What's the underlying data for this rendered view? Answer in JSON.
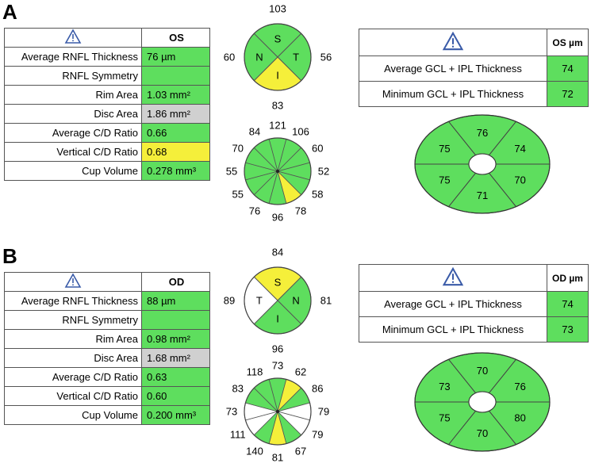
{
  "panels": [
    {
      "letter": "A",
      "table": {
        "eye": "OS",
        "rows": [
          {
            "label": "Average RNFL Thickness",
            "value": "76 µm",
            "color": "green"
          },
          {
            "label": "RNFL Symmetry",
            "value": "",
            "color": "green"
          },
          {
            "label": "Rim Area",
            "value": "1.03 mm²",
            "color": "green"
          },
          {
            "label": "Disc Area",
            "value": "1.86 mm²",
            "color": "gray"
          },
          {
            "label": "Average C/D Ratio",
            "value": "0.66",
            "color": "green"
          },
          {
            "label": "Vertical C/D Ratio",
            "value": "0.68",
            "color": "yellow"
          },
          {
            "label": "Cup Volume",
            "value": "0.278 mm³",
            "color": "green"
          }
        ]
      },
      "quadrant": {
        "sectors": [
          {
            "letter": "S",
            "value": "103",
            "color": "green"
          },
          {
            "letter": "T",
            "value": "56",
            "color": "green"
          },
          {
            "letter": "I",
            "value": "83",
            "color": "yellow"
          },
          {
            "letter": "N",
            "value": "60",
            "color": "green"
          }
        ]
      },
      "clock": {
        "hours": [
          {
            "value": "121",
            "color": "green"
          },
          {
            "value": "106",
            "color": "green"
          },
          {
            "value": "60",
            "color": "green"
          },
          {
            "value": "52",
            "color": "green"
          },
          {
            "value": "58",
            "color": "green"
          },
          {
            "value": "78",
            "color": "yellow"
          },
          {
            "value": "96",
            "color": "green"
          },
          {
            "value": "76",
            "color": "green"
          },
          {
            "value": "55",
            "color": "green"
          },
          {
            "value": "55",
            "color": "green"
          },
          {
            "value": "70",
            "color": "green"
          },
          {
            "value": "84",
            "color": "green"
          }
        ]
      },
      "gcl": {
        "header": "OS µm",
        "rows": [
          {
            "label": "Average GCL + IPL Thickness",
            "value": "74",
            "color": "green"
          },
          {
            "label": "Minimum GCL + IPL Thickness",
            "value": "72",
            "color": "green"
          }
        ]
      },
      "ellipse": {
        "sectors": [
          {
            "value": "76",
            "color": "green"
          },
          {
            "value": "74",
            "color": "green"
          },
          {
            "value": "70",
            "color": "green"
          },
          {
            "value": "71",
            "color": "green"
          },
          {
            "value": "75",
            "color": "green"
          },
          {
            "value": "75",
            "color": "green"
          }
        ]
      }
    },
    {
      "letter": "B",
      "table": {
        "eye": "OD",
        "rows": [
          {
            "label": "Average RNFL Thickness",
            "value": "88 µm",
            "color": "green"
          },
          {
            "label": "RNFL Symmetry",
            "value": "",
            "color": "green"
          },
          {
            "label": "Rim Area",
            "value": "0.98 mm²",
            "color": "green"
          },
          {
            "label": "Disc Area",
            "value": "1.68 mm²",
            "color": "gray"
          },
          {
            "label": "Average C/D Ratio",
            "value": "0.63",
            "color": "green"
          },
          {
            "label": "Vertical C/D Ratio",
            "value": "0.60",
            "color": "green"
          },
          {
            "label": "Cup Volume",
            "value": "0.200 mm³",
            "color": "green"
          }
        ]
      },
      "quadrant": {
        "sectors": [
          {
            "letter": "S",
            "value": "84",
            "color": "yellow"
          },
          {
            "letter": "N",
            "value": "81",
            "color": "green"
          },
          {
            "letter": "I",
            "value": "96",
            "color": "green"
          },
          {
            "letter": "T",
            "value": "89",
            "color": "white"
          }
        ]
      },
      "clock": {
        "hours": [
          {
            "value": "73",
            "color": "green"
          },
          {
            "value": "62",
            "color": "yellow"
          },
          {
            "value": "86",
            "color": "green"
          },
          {
            "value": "79",
            "color": "white"
          },
          {
            "value": "79",
            "color": "white"
          },
          {
            "value": "67",
            "color": "green"
          },
          {
            "value": "81",
            "color": "yellow"
          },
          {
            "value": "140",
            "color": "green"
          },
          {
            "value": "111",
            "color": "white"
          },
          {
            "value": "73",
            "color": "white"
          },
          {
            "value": "83",
            "color": "green"
          },
          {
            "value": "118",
            "color": "green"
          }
        ]
      },
      "gcl": {
        "header": "OD µm",
        "rows": [
          {
            "label": "Average GCL + IPL Thickness",
            "value": "74",
            "color": "green"
          },
          {
            "label": "Minimum GCL + IPL Thickness",
            "value": "73",
            "color": "green"
          }
        ]
      },
      "ellipse": {
        "sectors": [
          {
            "value": "70",
            "color": "green"
          },
          {
            "value": "76",
            "color": "green"
          },
          {
            "value": "80",
            "color": "green"
          },
          {
            "value": "70",
            "color": "green"
          },
          {
            "value": "75",
            "color": "green"
          },
          {
            "value": "73",
            "color": "green"
          }
        ]
      }
    }
  ],
  "icons": {
    "warning": "warning-triangle-icon"
  },
  "colors": {
    "green": "#5ede5e",
    "yellow": "#f5ef3a",
    "gray": "#d0d0d0",
    "white": "#ffffff"
  }
}
